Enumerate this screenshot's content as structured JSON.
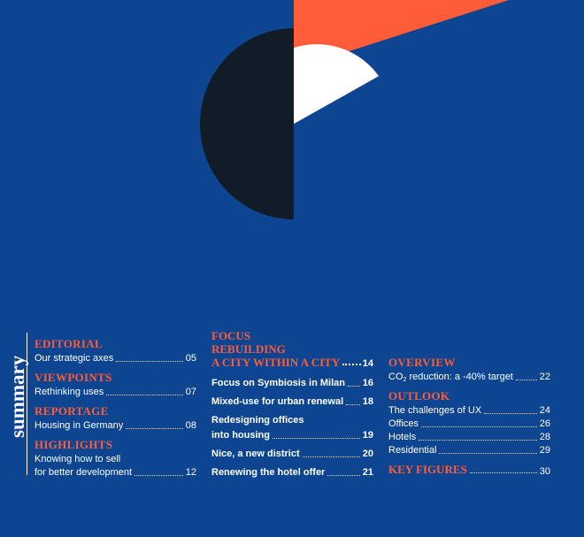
{
  "colors": {
    "background": "#0d4590",
    "accent": "#ff5c39",
    "dark": "#121c26",
    "white": "#ffffff"
  },
  "summary_label": "summary",
  "col1": [
    {
      "section": "EDITORIAL",
      "items": [
        {
          "title": "Our strategic axes",
          "page": "05"
        }
      ]
    },
    {
      "section": "VIEWPOINTS",
      "items": [
        {
          "title": "Rethinking uses",
          "page": "07"
        }
      ]
    },
    {
      "section": "REPORTAGE",
      "items": [
        {
          "title": "Housing in Germany",
          "page": "08"
        }
      ]
    },
    {
      "section": "HIGHLIGHTS",
      "items": [
        {
          "title_line1": "Knowing how to sell",
          "title_line2": "for better development",
          "page": "12"
        }
      ]
    }
  ],
  "col2": {
    "title_lines": [
      "FOCUS",
      "REBUILDING"
    ],
    "title_last": "A CITY WITHIN A CITY",
    "title_page": "14",
    "items": [
      {
        "title": "Focus on Symbiosis in Milan",
        "page": "16"
      },
      {
        "title": "Mixed-use for urban renewal",
        "page": "18"
      },
      {
        "title_line1": "Redesigning offices",
        "title_line2": "into housing",
        "page": "19"
      },
      {
        "title": "Nice, a new district",
        "page": "20"
      },
      {
        "title": "Renewing the hotel offer",
        "page": "21"
      }
    ]
  },
  "col3": {
    "overview": {
      "section": "OVERVIEW",
      "title_pre": "CO",
      "title_sub": "2",
      "title_post": " reduction: a -40% target",
      "page": "22"
    },
    "outlook": {
      "section": "OUTLOOK",
      "items": [
        {
          "title": "The challenges of UX",
          "page": "24"
        },
        {
          "title": "Offices",
          "page": "26"
        },
        {
          "title": "Hotels",
          "page": "28"
        },
        {
          "title": "Residential",
          "page": "29"
        }
      ]
    },
    "key_figures": {
      "section": "KEY FIGURES",
      "page": "30"
    }
  }
}
